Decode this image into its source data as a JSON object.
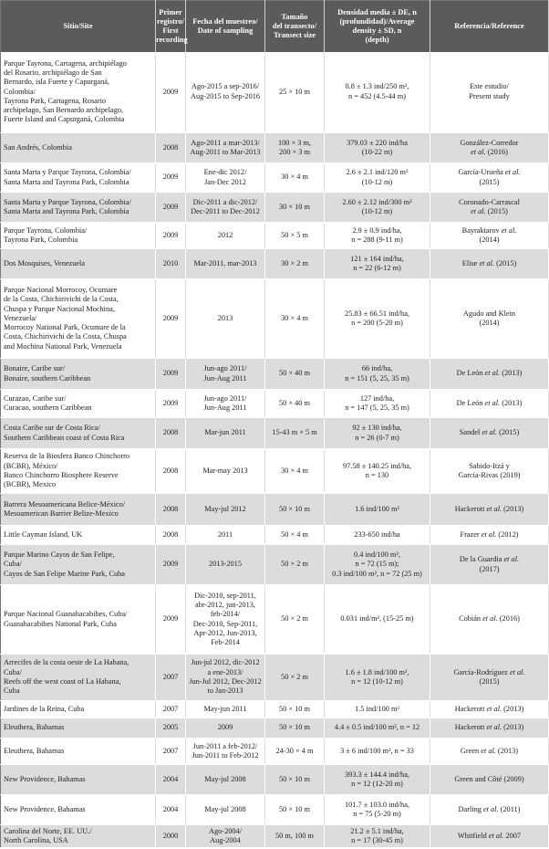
{
  "headers": {
    "site": "Sitio/Site",
    "first": "Primer\nregistro/\nFirst\nrecording",
    "date": "Fecha del muestreo/\nDate of sampling",
    "transect": "Tamaño\ndel transecto/\nTransect size",
    "density": "Densidad media ± DE, n\n(profundidad)/Average\ndensity ± SD, n\n(depth)",
    "ref": "Referencia/Reference"
  },
  "rows": [
    {
      "site": "Parque Tayrona, Cartagena, archipiélago\ndel Rosario, archipiélago de San\nBernardo, isla Fuerte y Capurganá,\nColombia/\nTayrona Park, Cartagena, Rosario\narchipelago, San Bernardo archipelago,\nFuerte Island and Capurganá, Colombia",
      "first": "2009",
      "date": "Ago-2015 a sep-2016/\nAug-2015 to Sep-2016",
      "transect": "25 × 10 m",
      "density": "0.8 ± 1.3 ind/250 m²,\nn = 452 (4.5-44 m)",
      "ref": {
        "pre": "Este estudio/\nPresent study",
        "em": "",
        "post": ""
      }
    },
    {
      "site": "San Andrés, Colombia",
      "first": "2008",
      "date": "Ago-2011 a mar-2013/\nAug-2011 to Mar-2013",
      "transect": "100 × 3 m,\n200 × 3 m",
      "density": "379.03 ± 220 ind/ha\n(10-22 m)",
      "ref": {
        "pre": "González-Corredor\n",
        "em": "et al.",
        "post": " (2016)"
      }
    },
    {
      "site": "Santa Marta y Parque Tayrona, Colombia/\nSanta Marta and Tayrona Park, Colombia",
      "first": "2009",
      "date": "Ene-dic 2012/\nJan-Dec 2012",
      "transect": "30 × 4 m",
      "density": "2.6 ± 2.1 ind/120 m²\n(10-12 m)",
      "ref": {
        "pre": "García-Urueña ",
        "em": "et al.",
        "post": "\n(2015)"
      }
    },
    {
      "site": "Santa Marta y Parque Tayrona, Colombia/\nSanta Marta and Tayrona Park, Colombia",
      "first": "2009",
      "date": "Dic-2011 a dic-2012/\nDec-2011 to Dec-2012",
      "transect": "30 × 10 m",
      "density": "2.60 ± 2.12 ind/300 m²\n(10-12 m)",
      "ref": {
        "pre": "Coronado-Carrascal\n",
        "em": "et al.",
        "post": " (2015)"
      }
    },
    {
      "site": "Parque Tayrona, Colombia/\nTayrona Park, Colombia",
      "first": "2009",
      "date": "2012",
      "transect": "50 × 5 m",
      "density": "2.9 ± 0.9 ind/ha,\nn = 288 (9-11 m)",
      "ref": {
        "pre": "Bayraktarov ",
        "em": "et al.",
        "post": "\n(2014)"
      }
    },
    {
      "site": "Dos Mosquises, Venezuela",
      "first": "2010",
      "date": "Mar-2011, mar-2013",
      "transect": "30 × 2 m",
      "density": "121 ± 164 ind/ha,\nn = 22 (6-12 m)",
      "ref": {
        "pre": "Elise ",
        "em": "et al.",
        "post": " (2015)"
      }
    },
    {
      "site": "Parque Nacional Morrocoy, Ocumare\nde la Costa, Chichirivichi de la Costa,\nChuspa y Parque Nacional Mochina,\nVenezuela/\nMorrocoy National Park, Ocumare de la\nCosta, Chichirivichi de la Costa, Chuspa\nand Mochina National Park, Venezuela",
      "first": "2009",
      "date": "2013",
      "transect": "30 × 4 m",
      "density": "25.83 ± 66.51 ind/ha,\nn = 200 (5-20 m)",
      "ref": {
        "pre": "Agudo and Klein\n(2014)",
        "em": "",
        "post": ""
      }
    },
    {
      "site": "Bonaire, Caribe sur/\nBonaire, southern Caribbean",
      "first": "2009",
      "date": "Jun-ago 2011/\nJun-Aug 2011",
      "transect": "50 × 40 m",
      "density": "66 ind/ha,\nn = 151 (5, 25, 35 m)",
      "ref": {
        "pre": "De León ",
        "em": "et al.",
        "post": " (2013)"
      }
    },
    {
      "site": "Curazao, Caribe sur/\nCuracao, southern Caribbean",
      "first": "2009",
      "date": "Jun-ago 2011/\nJun-Aug 2011",
      "transect": "50 × 40 m",
      "density": "127 ind/ha,\nn = 147 (5, 25, 35 m)",
      "ref": {
        "pre": "De León ",
        "em": "et al.",
        "post": " (2013)"
      }
    },
    {
      "site": "Costa Caribe sur de Costa Rica/\nSouthern Caribbean coast of Costa Rica",
      "first": "2008",
      "date": "Mar-jun 2011",
      "transect": "15-43 m × 5 m",
      "density": "92 ± 130 ind/ha,\nn = 26 (0-7 m)",
      "ref": {
        "pre": "Sandel ",
        "em": "et al.",
        "post": " (2015)"
      }
    },
    {
      "site": "Reserva de la Biosfera Banco Chinchorro\n(BCBR), México/\nBanco Chinchorro Biosphere Reserve\n(BCBR), Mexico",
      "first": "2008",
      "date": "Mar-may 2013",
      "transect": "30 × 4 m",
      "density": "97.58 ± 140.25 ind/ha,\nn = 130",
      "ref": {
        "pre": "Sabido-Itzá y\nGarcía-Rivas (2019)",
        "em": "",
        "post": ""
      }
    },
    {
      "site": "Barrera Mesoamericana Belice-México/\nMesoamerican Barrier Belize-Mexico",
      "first": "2008",
      "date": "May-jul 2012",
      "transect": "50 × 10 m",
      "density": "1.6 ind/100 m²",
      "ref": {
        "pre": "Hackerott ",
        "em": "et al.",
        "post": " (2013)"
      }
    },
    {
      "site": "Little Cayman Island, UK",
      "first": "2008",
      "date": "2011",
      "transect": "50 × 4 m",
      "density": "233-650 ind/ha",
      "ref": {
        "pre": "Frazer ",
        "em": "et al.",
        "post": " (2012)"
      }
    },
    {
      "site": "Parque Marino Cayos de San Felipe,\nCuba/\nCayos de San Felipe Marine Park, Cuba",
      "first": "2009",
      "date": "2013-2015",
      "transect": "50 × 2 m",
      "density": "0.4 ind/100 m²,\nn = 72 (15 m);\n0.3 ind/100 m², n = 72 (25 m)",
      "ref": {
        "pre": "De la Guardia ",
        "em": "et al.",
        "post": "\n(2017)"
      }
    },
    {
      "site": "Parque Nacional Guanahacabibes, Cuba/\nGuanahacabibes National Park, Cuba",
      "first": "2009",
      "date": "Dic-2010, sep-2011,\nabr-2012, jun-2013,\nfeb-2014/\nDec-2010, Sep-2011,\nApr-2012, Jun-2013,\nFeb-2014",
      "transect": "50 × 2 m",
      "density": "0.031 ind/m², (15-25 m)",
      "ref": {
        "pre": "Cobián ",
        "em": "et al.",
        "post": " (2016)"
      }
    },
    {
      "site": "Arrecifes de la costa oeste de La Habana,\nCuba/\nReefs off the west coast of La Habana,\nCuba",
      "first": "2007",
      "date": "Jun-jul 2012, dic-2012\na ene-2013/\nJun-Jul 2012, Dec-2012\nto Jan-2013",
      "transect": "50 × 2 m",
      "density": "1.6 ± 1.8 ind/100 m²,\nn = 12 (10-12 m)",
      "ref": {
        "pre": "García-Rodríguez ",
        "em": "et al.",
        "post": "\n(2015)"
      }
    },
    {
      "site": "Jardines de la Reina, Cuba",
      "first": "2007",
      "date": "May-jun 2011",
      "transect": "50 × 10 m",
      "density": "1.5 ind/100 m²",
      "ref": {
        "pre": "Hackerott ",
        "em": "et al.",
        "post": " (2013)"
      }
    },
    {
      "site": "Eleuthera, Bahamas",
      "first": "2005",
      "date": "2009",
      "transect": "50 × 10 m",
      "density": "4.4 ± 0.5 ind/100 m², n = 12",
      "ref": {
        "pre": "Hackerott ",
        "em": "et al.",
        "post": " (2013)"
      }
    },
    {
      "site": "Eleuthera, Bahamas",
      "first": "2007",
      "date": "Jun-2011 a feb-2012/\nJun-2011 to Feb-2012",
      "transect": "24-30 × 4 m",
      "density": "3 ± 6 ind/100 m², n = 33",
      "ref": {
        "pre": "Green ",
        "em": "et al.",
        "post": " (2013)"
      }
    },
    {
      "site": "New Providence, Bahamas",
      "first": "2004",
      "date": "May-jul 2008",
      "transect": "50 × 10 m",
      "density": "393.3 ± 144.4 ind/ha,\nn = 12 (12-20 m)",
      "ref": {
        "pre": "Green and Côté (2009)",
        "em": "",
        "post": ""
      }
    },
    {
      "site": "New Providence, Bahamas",
      "first": "2004",
      "date": "May-jul 2008",
      "transect": "50 × 10 m",
      "density": "101.7 ± 103.0 ind/ha,\nn = 75 (5-20 m)",
      "ref": {
        "pre": "Darling ",
        "em": "et al.",
        "post": " (2011)"
      }
    },
    {
      "site": "Carolina del Norte, EE. UU./\nNorth Carolina, USA",
      "first": "2000",
      "date": "Ago-2004/\nAug-2004",
      "transect": "50 m, 100 m",
      "density": "21.2 ± 5.1 ind/ha,\nn = 17 (30-45 m)",
      "ref": {
        "pre": "Whitfield ",
        "em": "et al.",
        "post": " 2007"
      }
    }
  ]
}
